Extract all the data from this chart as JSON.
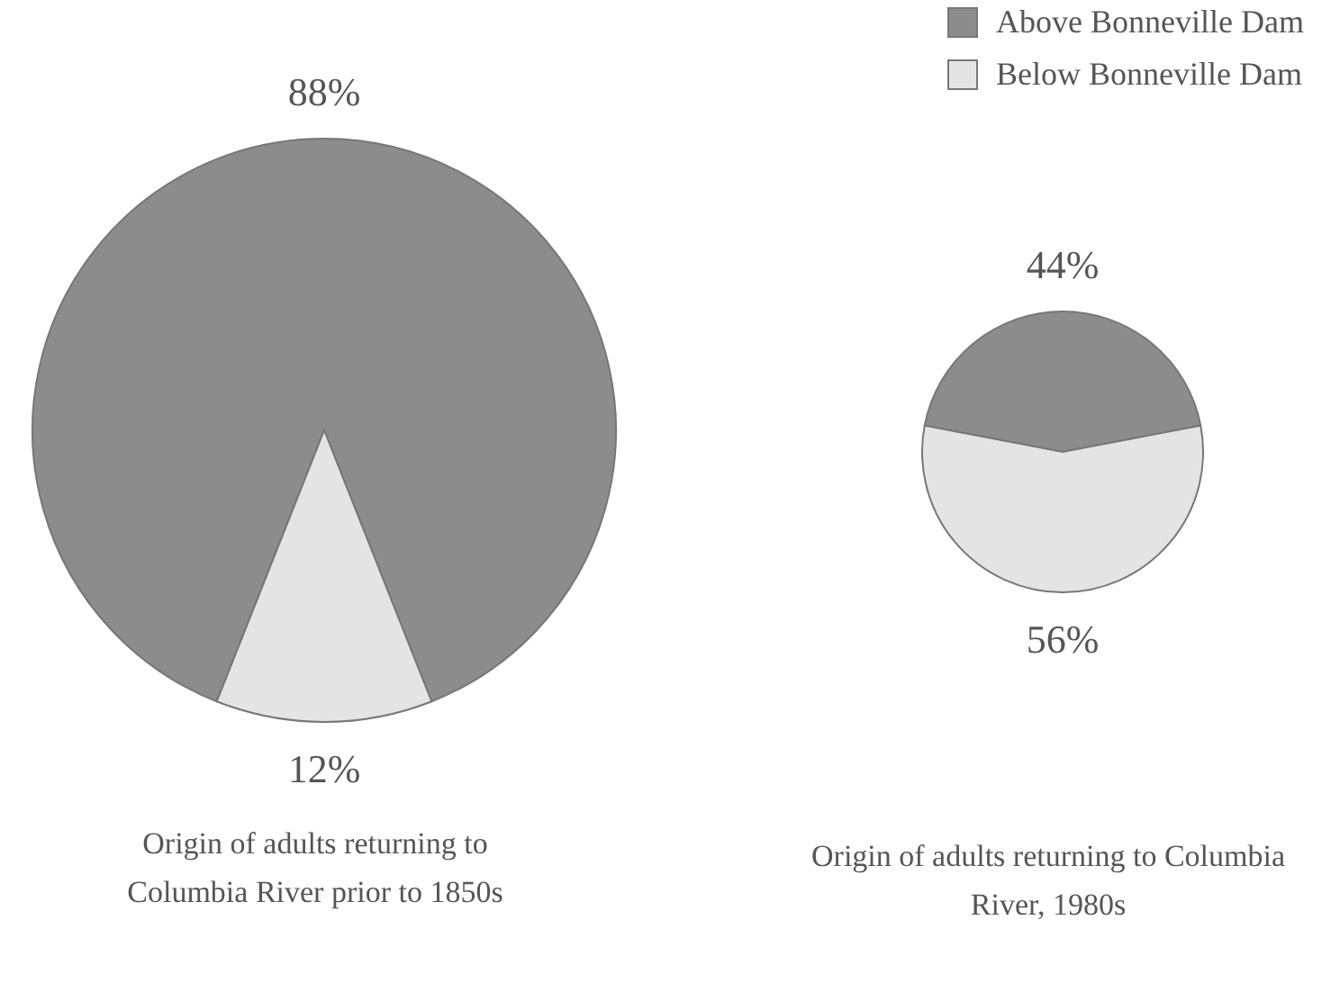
{
  "chart_data": [
    {
      "type": "pie",
      "title": "Origin of adults returning to Columbia River prior to 1850s",
      "categories": [
        null,
        null
      ],
      "values": [
        88,
        12
      ],
      "value_labels": [
        "88%",
        "12%"
      ],
      "colors": [
        "#8c8c8c",
        "#e4e4e4"
      ],
      "legend": false
    },
    {
      "type": "pie",
      "title": "Origin of adults returning to Columbia River, 1980s",
      "categories": [
        "Above Bonneville Dam",
        "Below Bonneville Dam"
      ],
      "values": [
        44,
        56
      ],
      "value_labels": [
        "44%",
        "56%"
      ],
      "colors": [
        "#8c8c8c",
        "#e4e4e4"
      ],
      "legend": "top right"
    }
  ]
}
